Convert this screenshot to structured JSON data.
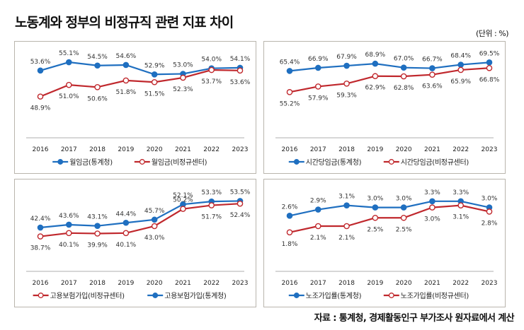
{
  "header": {
    "title": "노동계와 정부의 비정규직 관련 지표 차이",
    "unit": "(단위 : %)"
  },
  "footer": {
    "source": "자료 : 통계청, 경제활동인구 부가조사 원자료에서 계산"
  },
  "colors": {
    "blue": "#1f6fc0",
    "red": "#c0282d",
    "axis": "#bfbfbf"
  },
  "chart_data": [
    {
      "type": "line",
      "title": "",
      "xlabel": "",
      "ylabel": "",
      "categories": [
        "2016",
        "2017",
        "2018",
        "2019",
        "2020",
        "2021",
        "2022",
        "2023"
      ],
      "grid": false,
      "legend": "bottom",
      "series": [
        {
          "name": "월임금(통계청)",
          "color": "#1f6fc0",
          "marker": "filled-circle",
          "values": [
            53.6,
            55.1,
            54.5,
            54.6,
            52.9,
            53.0,
            54.0,
            54.1
          ],
          "labels": [
            "53.6%",
            "55.1%",
            "54.5%",
            "54.6%",
            "52.9%",
            "53.0%",
            "54.0%",
            "54.1%"
          ]
        },
        {
          "name": "월임금(비정규센터)",
          "color": "#c0282d",
          "marker": "open-circle",
          "values": [
            48.9,
            51.0,
            50.6,
            51.8,
            51.5,
            52.3,
            53.7,
            53.6
          ],
          "labels": [
            "48.9%",
            "51.0%",
            "50.6%",
            "51.8%",
            "51.5%",
            "52.3%",
            "53.7%",
            "53.6%"
          ]
        }
      ],
      "legend_order": [
        0,
        1
      ],
      "ylim": [
        44,
        56
      ]
    },
    {
      "type": "line",
      "title": "",
      "xlabel": "",
      "ylabel": "",
      "categories": [
        "2016",
        "2017",
        "2018",
        "2019",
        "2020",
        "2021",
        "2022",
        "2023"
      ],
      "grid": false,
      "legend": "bottom",
      "series": [
        {
          "name": "시간당임금(통계청)",
          "color": "#1f6fc0",
          "marker": "filled-circle",
          "values": [
            65.4,
            66.9,
            67.9,
            68.9,
            67.0,
            66.7,
            68.4,
            69.5
          ],
          "labels": [
            "65.4%",
            "66.9%",
            "67.9%",
            "68.9%",
            "67.0%",
            "66.7%",
            "68.4%",
            "69.5%"
          ]
        },
        {
          "name": "시간당임금(비정규센터)",
          "color": "#c0282d",
          "marker": "open-circle",
          "values": [
            55.2,
            57.9,
            59.3,
            62.9,
            62.8,
            63.6,
            65.9,
            66.8
          ],
          "labels": [
            "55.2%",
            "57.9%",
            "59.3%",
            "62.9%",
            "62.8%",
            "63.6%",
            "65.9%",
            "66.8%"
          ]
        }
      ],
      "legend_order": [
        0,
        1
      ],
      "ylim": [
        40,
        72
      ]
    },
    {
      "type": "line",
      "title": "",
      "xlabel": "",
      "ylabel": "",
      "categories": [
        "2016",
        "2017",
        "2018",
        "2019",
        "2020",
        "2021",
        "2022",
        "2023"
      ],
      "grid": false,
      "legend": "bottom",
      "series": [
        {
          "name": "고용보험가입(통계청)",
          "color": "#1f6fc0",
          "marker": "filled-circle",
          "values": [
            42.4,
            43.6,
            43.1,
            44.4,
            45.7,
            52.1,
            53.3,
            53.5
          ],
          "labels": [
            "42.4%",
            "43.6%",
            "43.1%",
            "44.4%",
            "45.7%",
            "52.1%",
            "53.3%",
            "53.5%"
          ]
        },
        {
          "name": "고용보험가입(비정규센터)",
          "color": "#c0282d",
          "marker": "open-circle",
          "values": [
            38.7,
            40.1,
            39.9,
            40.1,
            43.0,
            50.2,
            51.7,
            52.4
          ],
          "labels": [
            "38.7%",
            "40.1%",
            "39.9%",
            "40.1%",
            "43.0%",
            "50.2%",
            "51.7%",
            "52.4%"
          ]
        }
      ],
      "legend_order": [
        1,
        0
      ],
      "ylim": [
        30,
        56
      ]
    },
    {
      "type": "line",
      "title": "",
      "xlabel": "",
      "ylabel": "",
      "categories": [
        "2016",
        "2017",
        "2018",
        "2019",
        "2020",
        "2021",
        "2022",
        "2023"
      ],
      "grid": false,
      "legend": "bottom",
      "series": [
        {
          "name": "노조가입률(통계청)",
          "color": "#1f6fc0",
          "marker": "filled-circle",
          "values": [
            2.6,
            2.9,
            3.1,
            3.0,
            3.0,
            3.3,
            3.3,
            3.0
          ],
          "labels": [
            "2.6%",
            "2.9%",
            "3.1%",
            "3.0%",
            "3.0%",
            "3.3%",
            "3.3%",
            "3.0%"
          ]
        },
        {
          "name": "노조가입률(비정규센터)",
          "color": "#c0282d",
          "marker": "open-circle",
          "values": [
            1.8,
            2.1,
            2.1,
            2.5,
            2.5,
            3.0,
            3.1,
            2.8
          ],
          "labels": [
            "1.8%",
            "2.1%",
            "2.1%",
            "2.5%",
            "2.5%",
            "3.0%",
            "3.1%",
            "2.8%"
          ]
        }
      ],
      "legend_order": [
        0,
        1
      ],
      "ylim": [
        0.6,
        3.6
      ]
    }
  ]
}
